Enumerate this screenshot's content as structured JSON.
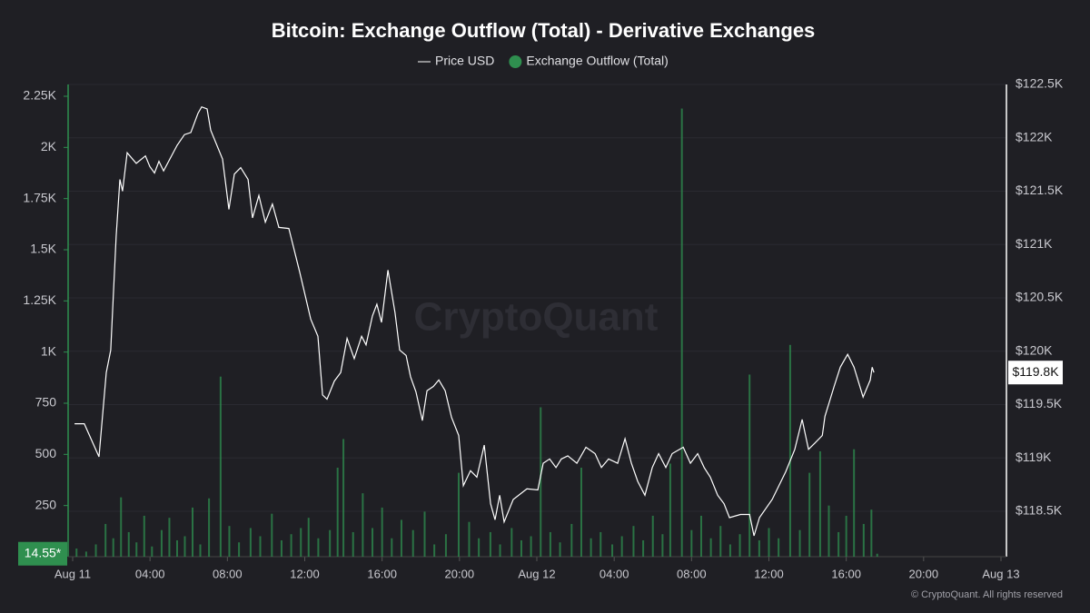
{
  "chart_data": {
    "type": "combo",
    "title": "Bitcoin: Exchange Outflow (Total) - Derivative Exchanges",
    "watermark": "CryptoQuant",
    "footer": "© CryptoQuant. All rights reserved",
    "background": "#1f1f24",
    "grid": true,
    "legend_position": "top",
    "xlim": [
      0,
      48
    ],
    "xticks": [
      {
        "value": 0,
        "label": "Aug 11"
      },
      {
        "value": 4,
        "label": "04:00"
      },
      {
        "value": 8,
        "label": "08:00"
      },
      {
        "value": 12,
        "label": "12:00"
      },
      {
        "value": 16,
        "label": "16:00"
      },
      {
        "value": 20,
        "label": "20:00"
      },
      {
        "value": 24,
        "label": "Aug 12"
      },
      {
        "value": 28,
        "label": "04:00"
      },
      {
        "value": 32,
        "label": "08:00"
      },
      {
        "value": 36,
        "label": "12:00"
      },
      {
        "value": 40,
        "label": "16:00"
      },
      {
        "value": 44,
        "label": "20:00"
      },
      {
        "value": 48,
        "label": "Aug 13"
      }
    ],
    "ylim": [
      0,
      2250
    ],
    "yticks": [
      250,
      500,
      750,
      {
        "value": 1000,
        "label": "1K"
      },
      {
        "value": 1250,
        "label": "1.25K"
      },
      {
        "value": 1500,
        "label": "1.5K"
      },
      {
        "value": 1750,
        "label": "1.75K"
      },
      {
        "value": 2000,
        "label": "2K"
      },
      {
        "value": 2250,
        "label": "2.25K"
      }
    ],
    "y2lim": [
      118074,
      122500
    ],
    "y2ticks": [
      {
        "value": 118500,
        "label": "$118.5K"
      },
      {
        "value": 119000,
        "label": "$119K"
      },
      {
        "value": 119500,
        "label": "$119.5K"
      },
      {
        "value": 120000,
        "label": "$120K"
      },
      {
        "value": 120500,
        "label": "$120.5K"
      },
      {
        "value": 121000,
        "label": "$121K"
      },
      {
        "value": 121500,
        "label": "$121.5K"
      },
      {
        "value": 122000,
        "label": "$122K"
      },
      {
        "value": 122500,
        "label": "$122.5K"
      }
    ],
    "current_labels": [
      {
        "value": 14.55,
        "label": "14.55*",
        "axis": "y",
        "color": "#2f8f4f"
      },
      {
        "value": 119800,
        "label": "$119.8K",
        "axis": "y2",
        "color": "#ffffff"
      }
    ],
    "series": [
      {
        "name": "Price USD",
        "type": "line",
        "axis": "y2",
        "color": "#ffffff",
        "x": [
          0.1,
          0.6,
          1.36,
          1.74,
          1.97,
          2.25,
          2.44,
          2.58,
          2.82,
          3.29,
          3.76,
          3.99,
          4.23,
          4.46,
          4.7,
          5.4,
          5.78,
          6.11,
          6.48,
          6.67,
          6.95,
          7.14,
          7.75,
          8.08,
          8.36,
          8.69,
          9.07,
          9.3,
          9.63,
          9.96,
          10.33,
          10.66,
          11.18,
          11.74,
          12.31,
          12.68,
          12.92,
          13.15,
          13.53,
          13.86,
          14.19,
          14.56,
          14.94,
          15.17,
          15.5,
          15.73,
          15.97,
          16.3,
          16.67,
          16.91,
          17.24,
          17.47,
          17.75,
          18.08,
          18.32,
          18.65,
          18.93,
          19.26,
          19.59,
          19.96,
          20.2,
          20.57,
          20.9,
          21.28,
          21.61,
          21.84,
          22.08,
          22.31,
          22.78,
          23.49,
          24.05,
          24.33,
          24.66,
          24.99,
          25.27,
          25.6,
          26.07,
          26.54,
          27.01,
          27.34,
          27.71,
          28.18,
          28.56,
          28.89,
          29.22,
          29.59,
          29.97,
          30.3,
          30.67,
          31.0,
          31.57,
          31.94,
          32.32,
          32.65,
          32.97,
          33.35,
          33.68,
          33.96,
          34.53,
          35.0,
          35.23,
          35.51,
          36.17,
          36.87,
          37.34,
          37.72,
          38.05,
          38.38,
          38.76,
          38.9,
          39.37,
          39.69,
          40.07,
          40.4,
          40.87,
          41.24,
          41.34,
          41.43
        ],
        "values": [
          119320,
          119320,
          119010,
          119800,
          120010,
          121080,
          121610,
          121500,
          121860,
          121760,
          121830,
          121730,
          121670,
          121780,
          121690,
          121930,
          122030,
          122050,
          122230,
          122290,
          122270,
          122070,
          121800,
          121330,
          121660,
          121720,
          121610,
          121250,
          121460,
          121210,
          121380,
          121160,
          121150,
          120740,
          120300,
          120140,
          119590,
          119550,
          119720,
          119800,
          120120,
          119930,
          120140,
          120060,
          120330,
          120440,
          120270,
          120760,
          120360,
          120010,
          119960,
          119760,
          119620,
          119350,
          119630,
          119670,
          119730,
          119630,
          119380,
          119210,
          118740,
          118880,
          118820,
          119120,
          118570,
          118420,
          118650,
          118400,
          118610,
          118710,
          118700,
          118950,
          118990,
          118910,
          118990,
          119020,
          118950,
          119100,
          119040,
          118910,
          118990,
          118950,
          119180,
          118950,
          118780,
          118650,
          118910,
          119040,
          118910,
          119040,
          119100,
          118950,
          119040,
          118910,
          118820,
          118650,
          118570,
          118440,
          118470,
          118470,
          118270,
          118440,
          118610,
          118870,
          119080,
          119360,
          119080,
          119140,
          119210,
          119390,
          119670,
          119850,
          119970,
          119850,
          119570,
          119730,
          119850,
          119800
        ]
      },
      {
        "name": "Exchange Outflow (Total)",
        "type": "bar",
        "axis": "y",
        "color": "#2f8f4f",
        "x": [
          0.2,
          0.7,
          1.2,
          1.7,
          2.1,
          2.5,
          2.9,
          3.3,
          3.7,
          4.1,
          4.6,
          5.0,
          5.4,
          5.8,
          6.2,
          6.6,
          7.05,
          7.65,
          8.1,
          8.6,
          9.2,
          9.7,
          10.3,
          10.8,
          11.3,
          11.8,
          12.2,
          12.7,
          13.3,
          13.7,
          14.0,
          14.5,
          15.0,
          15.5,
          16.0,
          16.5,
          17.0,
          17.6,
          18.2,
          18.7,
          19.3,
          19.96,
          20.5,
          21.0,
          21.6,
          22.1,
          22.7,
          23.2,
          23.7,
          24.2,
          24.7,
          25.2,
          25.8,
          26.3,
          26.8,
          27.3,
          27.9,
          28.4,
          29.0,
          29.5,
          30.0,
          30.5,
          30.9,
          31.5,
          32.0,
          32.5,
          33.0,
          33.5,
          34.0,
          34.5,
          35.0,
          35.5,
          36.0,
          36.5,
          37.1,
          37.6,
          38.1,
          38.65,
          39.1,
          39.6,
          40.0,
          40.4,
          40.9,
          41.3,
          41.6
        ],
        "values": [
          40,
          25,
          60,
          160,
          90,
          290,
          120,
          70,
          200,
          50,
          130,
          190,
          80,
          100,
          240,
          60,
          285,
          880,
          150,
          70,
          140,
          100,
          210,
          80,
          110,
          140,
          190,
          90,
          130,
          435,
          575,
          120,
          310,
          140,
          240,
          90,
          180,
          130,
          220,
          60,
          110,
          410,
          170,
          90,
          120,
          60,
          140,
          80,
          100,
          730,
          120,
          70,
          160,
          435,
          90,
          120,
          60,
          100,
          150,
          80,
          200,
          110,
          455,
          2190,
          130,
          200,
          90,
          150,
          60,
          110,
          890,
          80,
          140,
          90,
          1035,
          130,
          410,
          515,
          250,
          120,
          200,
          525,
          160,
          230,
          14.55
        ]
      }
    ]
  }
}
